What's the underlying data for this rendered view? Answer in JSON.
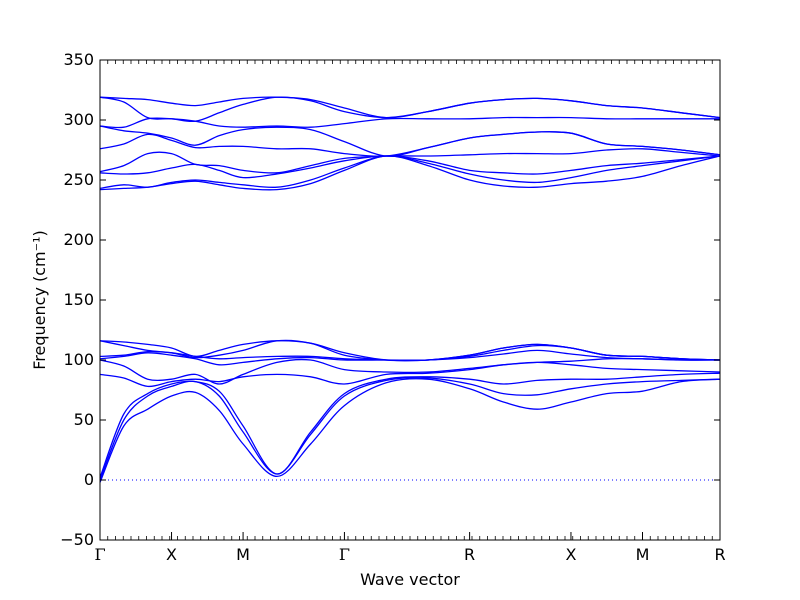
{
  "chart_data": {
    "type": "line",
    "title": "",
    "xlabel": "Wave vector",
    "ylabel": "Frequency (cm⁻¹)",
    "ylabel_unit_superscript": "−1",
    "ylim": [
      -50,
      350
    ],
    "yticks": [
      -50,
      0,
      50,
      100,
      150,
      200,
      250,
      300,
      350
    ],
    "ytick_labels": [
      "−50",
      "0",
      "50",
      "100",
      "150",
      "200",
      "250",
      "300",
      "350"
    ],
    "xlim": [
      0,
      5.2
    ],
    "high_symmetry_points": [
      {
        "label": "Γ",
        "x": 0.0
      },
      {
        "label": "X",
        "x": 0.6
      },
      {
        "label": "M",
        "x": 1.2
      },
      {
        "label": "Γ",
        "x": 2.05
      },
      {
        "label": "R",
        "x": 3.1
      },
      {
        "label": "X",
        "x": 3.95
      },
      {
        "label": "M",
        "x": 4.55
      },
      {
        "label": "R",
        "x": 5.2
      }
    ],
    "zero_line": {
      "y": 0,
      "style": "dotted"
    },
    "grid": false,
    "legend": "none",
    "line_color": "#0000ff",
    "series": [
      {
        "values": [
          -2,
          45,
          59,
          70,
          73,
          58,
          30,
          3,
          30,
          62,
          81,
          84,
          76,
          65,
          59,
          65,
          72,
          74,
          82,
          84
        ]
      },
      {
        "values": [
          0,
          50,
          70,
          78,
          82,
          70,
          40,
          5,
          38,
          70,
          83,
          85,
          80,
          72,
          71,
          76,
          80,
          82,
          83,
          84
        ]
      },
      {
        "values": [
          2,
          55,
          72,
          80,
          82,
          74,
          45,
          5,
          40,
          72,
          84,
          86,
          84,
          80,
          83,
          84,
          84,
          86,
          88,
          89
        ]
      },
      {
        "values": [
          88,
          85,
          78,
          82,
          84,
          82,
          86,
          88,
          86,
          80,
          88,
          89,
          92,
          96,
          98,
          96,
          93,
          92,
          91,
          90
        ]
      },
      {
        "values": [
          100,
          95,
          84,
          84,
          88,
          80,
          88,
          98,
          100,
          92,
          90,
          90,
          93,
          96,
          98,
          99,
          101,
          101,
          100,
          100
        ]
      },
      {
        "values": [
          101,
          103,
          106,
          104,
          101,
          96,
          98,
          101,
          102,
          100,
          100,
          100,
          102,
          105,
          108,
          105,
          102,
          101,
          100,
          100
        ]
      },
      {
        "values": [
          103,
          104,
          107,
          106,
          103,
          101,
          102,
          103,
          103,
          101,
          100,
          100,
          103,
          108,
          112,
          110,
          104,
          103,
          101,
          100
        ]
      },
      {
        "values": [
          116,
          112,
          108,
          106,
          102,
          104,
          108,
          116,
          114,
          104,
          100,
          100,
          104,
          110,
          113,
          110,
          104,
          103,
          101,
          100
        ]
      },
      {
        "values": [
          116,
          115,
          113,
          110,
          103,
          108,
          113,
          116,
          114,
          106,
          100,
          100,
          104,
          110,
          113,
          110,
          104,
          103,
          101,
          100
        ]
      },
      {
        "values": [
          242,
          243,
          244,
          247,
          249,
          246,
          243,
          242,
          247,
          258,
          270,
          262,
          250,
          245,
          244,
          247,
          249,
          253,
          262,
          270
        ]
      },
      {
        "values": [
          243,
          246,
          244,
          248,
          250,
          248,
          246,
          244,
          250,
          260,
          270,
          264,
          255,
          250,
          248,
          252,
          258,
          262,
          266,
          270
        ]
      },
      {
        "values": [
          256,
          255,
          256,
          260,
          263,
          258,
          252,
          255,
          260,
          266,
          270,
          266,
          258,
          256,
          255,
          258,
          262,
          264,
          267,
          270
        ]
      },
      {
        "values": [
          257,
          262,
          272,
          272,
          263,
          262,
          258,
          256,
          262,
          268,
          270,
          270,
          271,
          272,
          272,
          272,
          275,
          276,
          273,
          270
        ]
      },
      {
        "values": [
          276,
          280,
          288,
          283,
          277,
          278,
          278,
          276,
          276,
          272,
          270,
          277,
          285,
          288,
          290,
          289,
          280,
          278,
          275,
          271
        ]
      },
      {
        "values": [
          295,
          291,
          289,
          285,
          279,
          287,
          292,
          294,
          292,
          282,
          270,
          277,
          285,
          288,
          290,
          289,
          280,
          278,
          275,
          271
        ]
      },
      {
        "values": [
          295,
          294,
          301,
          301,
          299,
          295,
          294,
          295,
          294,
          297,
          301,
          301,
          301,
          302,
          302,
          302,
          301,
          301,
          301,
          301
        ]
      },
      {
        "values": [
          319,
          315,
          302,
          301,
          299,
          306,
          313,
          319,
          316,
          307,
          302,
          307,
          314,
          317,
          318,
          316,
          312,
          310,
          306,
          302
        ]
      },
      {
        "values": [
          319,
          318,
          317,
          314,
          312,
          315,
          318,
          319,
          317,
          310,
          302,
          307,
          314,
          317,
          318,
          316,
          312,
          310,
          306,
          302
        ]
      }
    ]
  }
}
